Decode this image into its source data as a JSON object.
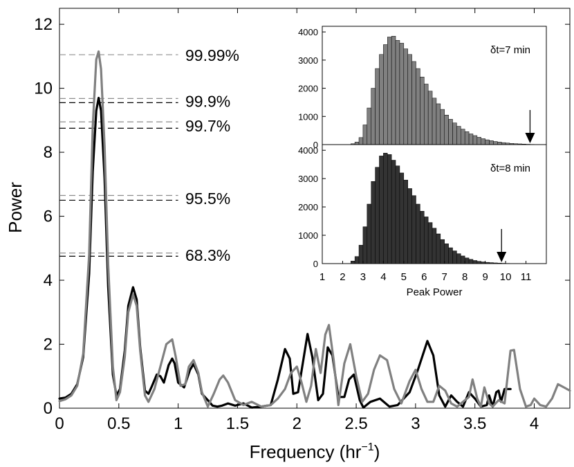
{
  "chart_data": {
    "main": {
      "type": "line",
      "xlabel_main": "Frequency  (hr",
      "xlabel_sup": "−1",
      "xlabel_close": ")",
      "ylabel": "Power",
      "xlim": [
        0,
        4.3
      ],
      "ylim": [
        0,
        12.5
      ],
      "x_ticks": [
        0,
        0.5,
        1,
        1.5,
        2,
        2.5,
        3,
        3.5,
        4
      ],
      "x_tick_labels": [
        "0",
        "0.5",
        "1",
        "1.5",
        "2",
        "2.5",
        "3",
        "3.5",
        "4"
      ],
      "y_ticks": [
        0,
        2,
        4,
        6,
        8,
        10,
        12
      ],
      "y_tick_labels": [
        "0",
        "2",
        "4",
        "6",
        "8",
        "10",
        "12"
      ],
      "significance_levels": [
        {
          "label": "99.99%",
          "gray": 11.05
        },
        {
          "label": "99.9%",
          "gray": 9.68,
          "black": 9.55
        },
        {
          "label": "99.7%",
          "gray": 8.95,
          "black": 8.75
        },
        {
          "label": "95.5%",
          "gray": 6.65,
          "black": 6.5
        },
        {
          "label": "68.3%",
          "gray": 4.85,
          "black": 4.75
        }
      ],
      "series": [
        {
          "name": "black",
          "color": "#000000",
          "x": [
            0,
            0.05,
            0.1,
            0.15,
            0.2,
            0.25,
            0.28,
            0.31,
            0.33,
            0.35,
            0.38,
            0.41,
            0.45,
            0.48,
            0.51,
            0.55,
            0.58,
            0.62,
            0.65,
            0.68,
            0.72,
            0.75,
            0.78,
            0.82,
            0.85,
            0.88,
            0.92,
            0.95,
            0.97,
            1.0,
            1.05,
            1.1,
            1.13,
            1.17,
            1.2,
            1.25,
            1.29,
            1.33,
            1.37,
            1.42,
            1.48,
            1.55,
            1.62,
            1.7,
            1.78,
            1.84,
            1.9,
            1.94,
            1.97,
            2.01,
            2.05,
            2.09,
            2.13,
            2.18,
            2.22,
            2.26,
            2.3,
            2.35,
            2.4,
            2.44,
            2.48,
            2.53,
            2.56,
            2.62,
            2.7,
            2.78,
            2.85,
            2.95,
            3.02,
            3.1,
            3.15,
            3.2,
            3.25,
            3.3,
            3.35,
            3.4,
            3.45,
            3.5,
            3.55,
            3.6,
            3.62,
            3.65,
            3.68,
            3.7,
            3.72,
            3.75,
            3.8
          ],
          "y": [
            0.3,
            0.33,
            0.45,
            0.75,
            1.6,
            4.2,
            7.4,
            9.3,
            9.7,
            9.3,
            7.2,
            3.8,
            1.05,
            0.4,
            0.6,
            1.8,
            3.2,
            3.78,
            3.4,
            1.9,
            0.55,
            0.45,
            0.7,
            1.05,
            1.0,
            0.8,
            1.35,
            1.55,
            1.4,
            0.8,
            0.65,
            1.2,
            1.38,
            1.05,
            0.45,
            0.25,
            0.08,
            0.05,
            0.08,
            0.15,
            0.08,
            0.15,
            0.02,
            0.05,
            0.1,
            0.9,
            1.85,
            1.55,
            0.45,
            0.5,
            1.4,
            2.32,
            1.6,
            0.25,
            0.45,
            1.9,
            1.65,
            0.35,
            0.35,
            0.9,
            1.05,
            0.25,
            0.02,
            0.2,
            0.3,
            0.05,
            0.1,
            0.5,
            1.2,
            2.1,
            1.65,
            0.4,
            0.05,
            0.4,
            0.2,
            0.05,
            0.5,
            0.3,
            0.05,
            0.1,
            0.4,
            0.05,
            0.5,
            0.55,
            0.2,
            0.6,
            0.6
          ]
        },
        {
          "name": "gray",
          "color": "#808080",
          "x": [
            0,
            0.05,
            0.1,
            0.15,
            0.2,
            0.25,
            0.28,
            0.31,
            0.33,
            0.35,
            0.38,
            0.41,
            0.45,
            0.48,
            0.51,
            0.55,
            0.58,
            0.62,
            0.65,
            0.68,
            0.72,
            0.75,
            0.8,
            0.85,
            0.9,
            0.95,
            0.98,
            1.02,
            1.06,
            1.09,
            1.13,
            1.17,
            1.2,
            1.25,
            1.3,
            1.35,
            1.38,
            1.42,
            1.48,
            1.55,
            1.62,
            1.7,
            1.78,
            1.84,
            1.9,
            1.95,
            2.0,
            2.04,
            2.08,
            2.12,
            2.16,
            2.2,
            2.24,
            2.27,
            2.31,
            2.35,
            2.4,
            2.45,
            2.5,
            2.55,
            2.6,
            2.65,
            2.7,
            2.76,
            2.82,
            2.88,
            2.95,
            3.0,
            3.05,
            3.1,
            3.15,
            3.2,
            3.25,
            3.3,
            3.35,
            3.4,
            3.45,
            3.48,
            3.52,
            3.55,
            3.58,
            3.62,
            3.65,
            3.7,
            3.75,
            3.8,
            3.83,
            3.88,
            3.93,
            3.97,
            4.0,
            4.05,
            4.1,
            4.15,
            4.2,
            4.25,
            4.3
          ],
          "y": [
            0.22,
            0.28,
            0.4,
            0.7,
            1.7,
            4.8,
            8.8,
            10.9,
            11.15,
            10.6,
            8.2,
            4.5,
            1.3,
            0.25,
            0.5,
            1.6,
            3.0,
            3.55,
            3.2,
            1.8,
            0.4,
            0.2,
            0.6,
            1.3,
            2.0,
            2.15,
            1.6,
            0.7,
            0.75,
            1.3,
            1.5,
            1.1,
            0.5,
            0.05,
            0.45,
            0.9,
            1.02,
            0.8,
            0.25,
            0.1,
            0.2,
            0.05,
            0.1,
            0.3,
            0.6,
            1.1,
            1.3,
            0.8,
            0.2,
            0.7,
            1.85,
            1.1,
            2.3,
            2.6,
            1.5,
            0.1,
            1.4,
            2.0,
            1.0,
            0.2,
            0.45,
            1.2,
            1.65,
            1.5,
            0.6,
            0.15,
            0.85,
            1.2,
            0.6,
            0.2,
            0.2,
            0.7,
            0.55,
            0.15,
            0.05,
            0.2,
            0.35,
            0.9,
            0.3,
            0.05,
            0.65,
            0.15,
            0.05,
            0.25,
            0.15,
            1.8,
            1.82,
            0.6,
            0.05,
            0.1,
            0.3,
            0.1,
            0.05,
            0.3,
            0.75,
            0.65,
            0.55
          ]
        }
      ]
    },
    "inset": {
      "type": "bar",
      "xlabel": "Peak Power",
      "xlim": [
        1,
        12
      ],
      "x_ticks": [
        1,
        2,
        3,
        4,
        5,
        6,
        7,
        8,
        9,
        10,
        11
      ],
      "x_tick_labels": [
        "1",
        "2",
        "3",
        "4",
        "5",
        "6",
        "7",
        "8",
        "9",
        "10",
        "11"
      ],
      "bin_width": 0.2,
      "panels": [
        {
          "label": "δt=7 min",
          "color": "#808080",
          "ylim": [
            0,
            4200
          ],
          "y_ticks": [
            0,
            1000,
            2000,
            3000,
            4000
          ],
          "y_tick_labels": [
            "0",
            "1000",
            "2000",
            "3000",
            "4000"
          ],
          "arrow_x": 11.2,
          "bin_start": 2.4,
          "values": [
            30,
            90,
            250,
            700,
            1300,
            2000,
            2700,
            3200,
            3550,
            3820,
            3850,
            3700,
            3600,
            3400,
            3200,
            2950,
            2700,
            2400,
            2150,
            1900,
            1650,
            1450,
            1250,
            1050,
            900,
            770,
            650,
            550,
            460,
            380,
            320,
            260,
            210,
            170,
            140,
            110,
            90,
            70,
            55,
            42,
            32,
            25,
            18,
            12,
            8,
            5
          ]
        },
        {
          "label": "δt=8 min",
          "color": "#333333",
          "ylim": [
            0,
            4200
          ],
          "y_ticks": [
            0,
            1000,
            2000,
            3000,
            4000
          ],
          "y_tick_labels": [
            "0",
            "1000",
            "2000",
            "3000",
            "4000"
          ],
          "arrow_x": 9.8,
          "bin_start": 2.4,
          "values": [
            90,
            250,
            650,
            1300,
            2100,
            2900,
            3400,
            3800,
            3900,
            3850,
            3650,
            3450,
            3200,
            2950,
            2650,
            2400,
            2100,
            1850,
            1650,
            1450,
            1250,
            1050,
            850,
            700,
            560,
            450,
            350,
            270,
            200,
            150,
            110,
            80,
            60,
            45,
            35,
            25,
            18,
            12,
            8,
            5,
            4,
            3,
            2,
            1,
            1,
            1
          ]
        }
      ]
    }
  }
}
